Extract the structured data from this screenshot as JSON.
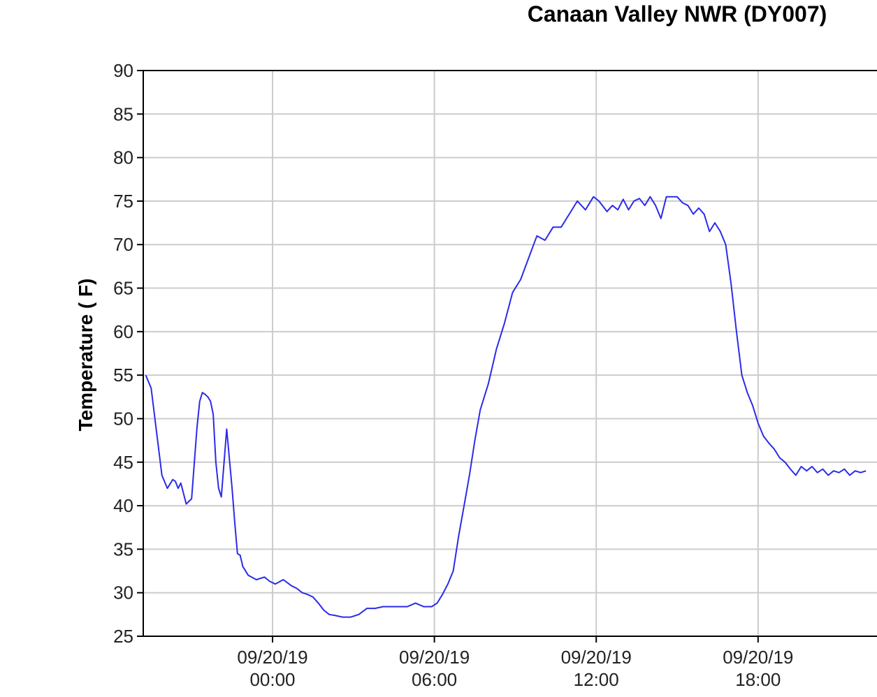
{
  "chart_data": {
    "type": "line",
    "title": "Canaan Valley NWR (DY007)",
    "ylabel": "Temperature ( F)",
    "xlabel": "",
    "ylim": [
      25,
      90
    ],
    "y_ticks": [
      25,
      30,
      35,
      40,
      45,
      50,
      55,
      60,
      65,
      70,
      75,
      80,
      85,
      90
    ],
    "x_unit": "hours relative to 09/20/19 00:00",
    "xlim": [
      -8,
      27
    ],
    "x_ticks": [
      {
        "x": 0,
        "date": "09/20/19",
        "time": "00:00"
      },
      {
        "x": 6,
        "date": "09/20/19",
        "time": "06:00"
      },
      {
        "x": 12,
        "date": "09/20/19",
        "time": "12:00"
      },
      {
        "x": 18,
        "date": "09/20/19",
        "time": "18:00"
      }
    ],
    "grid": true,
    "colors": {
      "series": "#2b2bea",
      "grid": "#cccccc"
    },
    "series": [
      {
        "x": [
          -4.7,
          -4.5,
          -4.3,
          -4.1,
          -3.9,
          -3.7,
          -3.6,
          -3.5,
          -3.4,
          -3.2,
          -3.0,
          -2.8,
          -2.7,
          -2.6,
          -2.5,
          -2.4,
          -2.3,
          -2.2,
          -2.1,
          -2.0,
          -1.9,
          -1.7,
          -1.5,
          -1.4,
          -1.3,
          -1.2,
          -1.1,
          -0.9,
          -0.6,
          -0.3,
          -0.1,
          0.1,
          0.4,
          0.7,
          0.9,
          1.1,
          1.3,
          1.5,
          1.7,
          1.9,
          2.1,
          2.3,
          2.6,
          2.9,
          3.2,
          3.5,
          3.8,
          4.1,
          4.4,
          4.7,
          5.0,
          5.3,
          5.6,
          5.9,
          6.1,
          6.3,
          6.5,
          6.7,
          6.9,
          7.1,
          7.3,
          7.5,
          7.7,
          8.0,
          8.3,
          8.6,
          8.9,
          9.2,
          9.5,
          9.8,
          10.1,
          10.4,
          10.7,
          11.0,
          11.3,
          11.6,
          11.9,
          12.1,
          12.4,
          12.6,
          12.8,
          13.0,
          13.2,
          13.4,
          13.6,
          13.8,
          14.0,
          14.2,
          14.4,
          14.6,
          14.8,
          15.0,
          15.2,
          15.4,
          15.6,
          15.8,
          16.0,
          16.2,
          16.4,
          16.6,
          16.8,
          17.0,
          17.2,
          17.4,
          17.6,
          17.8,
          18.0,
          18.2,
          18.4,
          18.6,
          18.8,
          19.0,
          19.2,
          19.4,
          19.6,
          19.8,
          20.0,
          20.2,
          20.4,
          20.6,
          20.8,
          21.0,
          21.2,
          21.4,
          21.6,
          21.8,
          22.0
        ],
        "y": [
          55.0,
          53.5,
          48.5,
          43.5,
          42.0,
          43.0,
          42.8,
          42.0,
          42.6,
          40.2,
          40.8,
          49.0,
          52.0,
          53.0,
          52.8,
          52.5,
          52.0,
          50.5,
          45.0,
          42.0,
          41.0,
          48.8,
          42.0,
          38.0,
          34.5,
          34.3,
          33.0,
          32.0,
          31.5,
          31.8,
          31.3,
          31.0,
          31.5,
          30.8,
          30.5,
          30.0,
          29.8,
          29.5,
          28.8,
          28.0,
          27.5,
          27.4,
          27.2,
          27.2,
          27.5,
          28.2,
          28.2,
          28.4,
          28.4,
          28.4,
          28.4,
          28.8,
          28.4,
          28.4,
          28.8,
          29.8,
          31.0,
          32.5,
          36.5,
          40.0,
          43.5,
          47.5,
          51.0,
          54.0,
          58.0,
          61.0,
          64.5,
          66.0,
          68.5,
          71.0,
          70.5,
          72.0,
          72.0,
          73.5,
          75.0,
          74.0,
          75.5,
          75.0,
          73.8,
          74.5,
          74.0,
          75.2,
          74.0,
          75.0,
          75.3,
          74.5,
          75.5,
          74.5,
          73.0,
          75.5,
          75.5,
          75.5,
          74.8,
          74.5,
          73.5,
          74.2,
          73.5,
          71.5,
          72.5,
          71.5,
          70.0,
          65.5,
          60.0,
          55.0,
          53.0,
          51.5,
          49.5,
          48.0,
          47.2,
          46.5,
          45.5,
          45.0,
          44.2,
          43.5,
          44.5,
          44.0,
          44.5,
          43.8,
          44.2,
          43.5,
          44.0,
          43.8,
          44.2,
          43.5,
          44.0,
          43.8,
          44.0
        ]
      }
    ]
  }
}
